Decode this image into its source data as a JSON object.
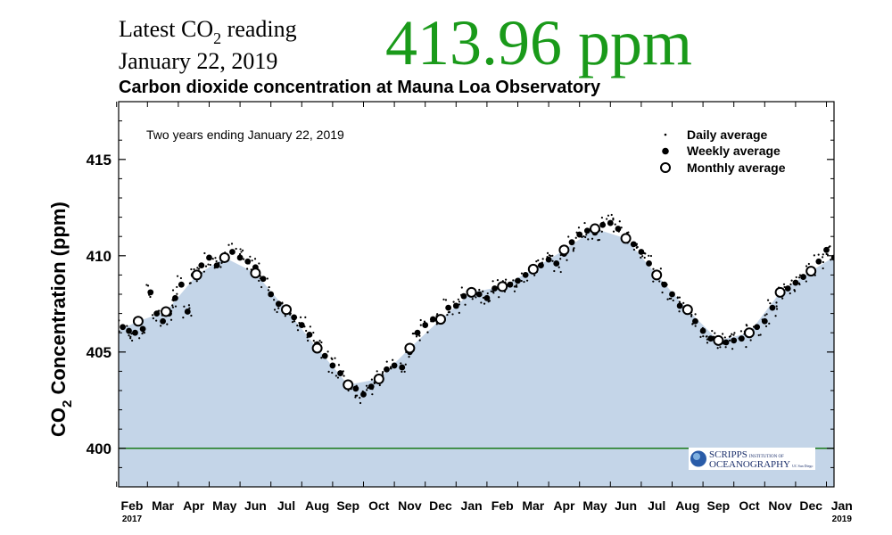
{
  "header": {
    "latest_prefix": "Latest CO",
    "latest_sub": "2",
    "latest_suffix": " reading",
    "date": "January 22, 2019",
    "reading": "413.96 ppm"
  },
  "colors": {
    "reading": "#1a9a1a",
    "area_fill": "#c4d5e8",
    "baseline": "#1a7a1a"
  },
  "chart_data": {
    "type": "scatter",
    "title": "Carbon dioxide concentration at Mauna Loa Observatory",
    "note": "Two years ending January 22, 2019",
    "ylabel_main": "CO",
    "ylabel_sub": "2",
    "ylabel_rest": " Concentration (ppm)",
    "ylim": [
      398,
      418
    ],
    "yticks": [
      400,
      405,
      410,
      415
    ],
    "xticks": [
      "Feb",
      "Mar",
      "Apr",
      "May",
      "Jun",
      "Jul",
      "Aug",
      "Sep",
      "Oct",
      "Nov",
      "Dec",
      "Jan",
      "Feb",
      "Mar",
      "Apr",
      "May",
      "Jun",
      "Jul",
      "Aug",
      "Sep",
      "Oct",
      "Nov",
      "Dec",
      "Jan"
    ],
    "year_labels": [
      {
        "tick": 0,
        "label": "2017"
      },
      {
        "tick": 23,
        "label": "2019"
      }
    ],
    "reference_line": 400,
    "legend": {
      "position": "top-right",
      "items": [
        "Daily average",
        "Weekly average",
        "Monthly average"
      ]
    },
    "monthly_average": [
      {
        "x": 0.2,
        "y": 406.6
      },
      {
        "x": 1.1,
        "y": 407.1
      },
      {
        "x": 2.1,
        "y": 409.0
      },
      {
        "x": 3.0,
        "y": 409.9
      },
      {
        "x": 4.0,
        "y": 409.1
      },
      {
        "x": 5.0,
        "y": 407.2
      },
      {
        "x": 6.0,
        "y": 405.2
      },
      {
        "x": 7.0,
        "y": 403.3
      },
      {
        "x": 8.0,
        "y": 403.6
      },
      {
        "x": 9.0,
        "y": 405.2
      },
      {
        "x": 10.0,
        "y": 406.7
      },
      {
        "x": 11.0,
        "y": 408.1
      },
      {
        "x": 12.0,
        "y": 408.4
      },
      {
        "x": 13.0,
        "y": 409.3
      },
      {
        "x": 14.0,
        "y": 410.3
      },
      {
        "x": 15.0,
        "y": 411.4
      },
      {
        "x": 16.0,
        "y": 410.9
      },
      {
        "x": 17.0,
        "y": 409.0
      },
      {
        "x": 18.0,
        "y": 407.2
      },
      {
        "x": 19.0,
        "y": 405.6
      },
      {
        "x": 20.0,
        "y": 406.0
      },
      {
        "x": 21.0,
        "y": 408.1
      },
      {
        "x": 22.0,
        "y": 409.2
      }
    ],
    "weekly_average": [
      {
        "x": -0.3,
        "y": 406.3
      },
      {
        "x": -0.1,
        "y": 406.1
      },
      {
        "x": 0.1,
        "y": 406.0
      },
      {
        "x": 0.35,
        "y": 406.2
      },
      {
        "x": 0.6,
        "y": 408.1
      },
      {
        "x": 0.8,
        "y": 407.0
      },
      {
        "x": 1.0,
        "y": 406.6
      },
      {
        "x": 1.2,
        "y": 407.0
      },
      {
        "x": 1.4,
        "y": 407.8
      },
      {
        "x": 1.6,
        "y": 408.5
      },
      {
        "x": 1.8,
        "y": 407.1
      },
      {
        "x": 2.0,
        "y": 409.0
      },
      {
        "x": 2.25,
        "y": 409.5
      },
      {
        "x": 2.5,
        "y": 409.9
      },
      {
        "x": 2.75,
        "y": 409.5
      },
      {
        "x": 3.0,
        "y": 409.8
      },
      {
        "x": 3.25,
        "y": 410.2
      },
      {
        "x": 3.5,
        "y": 409.9
      },
      {
        "x": 3.75,
        "y": 409.7
      },
      {
        "x": 4.0,
        "y": 409.4
      },
      {
        "x": 4.25,
        "y": 408.8
      },
      {
        "x": 4.5,
        "y": 408.0
      },
      {
        "x": 4.75,
        "y": 407.5
      },
      {
        "x": 5.0,
        "y": 407.3
      },
      {
        "x": 5.25,
        "y": 406.8
      },
      {
        "x": 5.5,
        "y": 406.4
      },
      {
        "x": 5.75,
        "y": 405.9
      },
      {
        "x": 6.0,
        "y": 405.4
      },
      {
        "x": 6.25,
        "y": 404.8
      },
      {
        "x": 6.5,
        "y": 404.3
      },
      {
        "x": 6.75,
        "y": 403.9
      },
      {
        "x": 7.0,
        "y": 403.4
      },
      {
        "x": 7.25,
        "y": 403.1
      },
      {
        "x": 7.5,
        "y": 402.8
      },
      {
        "x": 7.75,
        "y": 403.2
      },
      {
        "x": 8.0,
        "y": 403.6
      },
      {
        "x": 8.25,
        "y": 404.1
      },
      {
        "x": 8.5,
        "y": 404.3
      },
      {
        "x": 8.75,
        "y": 404.2
      },
      {
        "x": 9.0,
        "y": 405.0
      },
      {
        "x": 9.25,
        "y": 406.0
      },
      {
        "x": 9.5,
        "y": 406.4
      },
      {
        "x": 9.75,
        "y": 406.7
      },
      {
        "x": 10.0,
        "y": 406.6
      },
      {
        "x": 10.25,
        "y": 407.3
      },
      {
        "x": 10.5,
        "y": 407.4
      },
      {
        "x": 10.75,
        "y": 407.9
      },
      {
        "x": 11.0,
        "y": 408.1
      },
      {
        "x": 11.25,
        "y": 408.0
      },
      {
        "x": 11.5,
        "y": 407.8
      },
      {
        "x": 11.75,
        "y": 408.3
      },
      {
        "x": 12.0,
        "y": 408.4
      },
      {
        "x": 12.25,
        "y": 408.5
      },
      {
        "x": 12.5,
        "y": 408.7
      },
      {
        "x": 12.75,
        "y": 409.0
      },
      {
        "x": 13.0,
        "y": 409.3
      },
      {
        "x": 13.25,
        "y": 409.5
      },
      {
        "x": 13.5,
        "y": 409.8
      },
      {
        "x": 13.75,
        "y": 409.6
      },
      {
        "x": 14.0,
        "y": 410.1
      },
      {
        "x": 14.25,
        "y": 410.7
      },
      {
        "x": 14.5,
        "y": 411.1
      },
      {
        "x": 14.75,
        "y": 411.3
      },
      {
        "x": 15.0,
        "y": 411.2
      },
      {
        "x": 15.25,
        "y": 411.6
      },
      {
        "x": 15.5,
        "y": 411.7
      },
      {
        "x": 15.75,
        "y": 411.4
      },
      {
        "x": 16.0,
        "y": 411.0
      },
      {
        "x": 16.25,
        "y": 410.6
      },
      {
        "x": 16.5,
        "y": 410.2
      },
      {
        "x": 16.75,
        "y": 409.6
      },
      {
        "x": 17.0,
        "y": 409.1
      },
      {
        "x": 17.25,
        "y": 408.5
      },
      {
        "x": 17.5,
        "y": 408.0
      },
      {
        "x": 17.75,
        "y": 407.4
      },
      {
        "x": 18.0,
        "y": 407.2
      },
      {
        "x": 18.25,
        "y": 406.6
      },
      {
        "x": 18.5,
        "y": 406.1
      },
      {
        "x": 18.75,
        "y": 405.7
      },
      {
        "x": 19.0,
        "y": 405.6
      },
      {
        "x": 19.25,
        "y": 405.5
      },
      {
        "x": 19.5,
        "y": 405.6
      },
      {
        "x": 19.75,
        "y": 405.7
      },
      {
        "x": 20.0,
        "y": 406.0
      },
      {
        "x": 20.25,
        "y": 406.3
      },
      {
        "x": 20.5,
        "y": 406.6
      },
      {
        "x": 20.75,
        "y": 407.3
      },
      {
        "x": 21.0,
        "y": 408.0
      },
      {
        "x": 21.25,
        "y": 408.3
      },
      {
        "x": 21.5,
        "y": 408.6
      },
      {
        "x": 21.75,
        "y": 408.9
      },
      {
        "x": 22.0,
        "y": 409.3
      },
      {
        "x": 22.25,
        "y": 409.7
      },
      {
        "x": 22.5,
        "y": 410.3
      },
      {
        "x": 22.75,
        "y": 409.9
      },
      {
        "x": 23.0,
        "y": 412.3
      }
    ]
  },
  "logo": {
    "line1": "SCRIPPS",
    "line1_small": "INSTITUTION OF",
    "line2": "OCEANOGRAPHY",
    "line2_small": "UC San Diego"
  }
}
